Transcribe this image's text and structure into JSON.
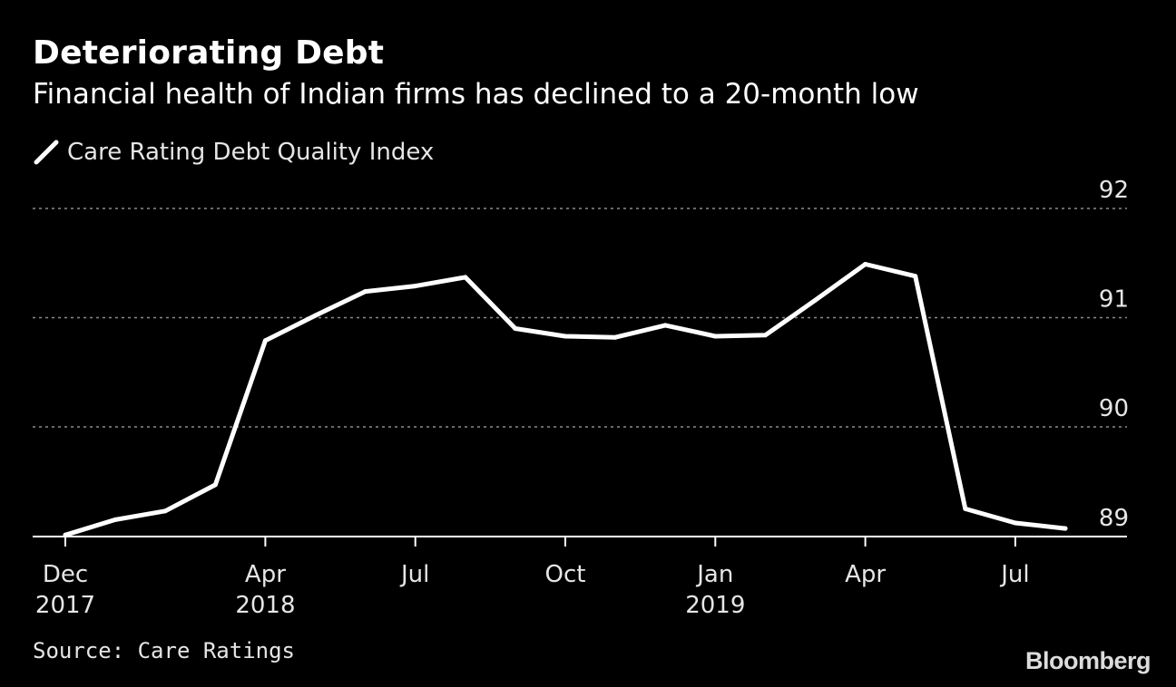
{
  "chart_data": {
    "type": "line",
    "title": "Deteriorating Debt",
    "subtitle": "Financial health of Indian firms has declined to a 20-month low",
    "series": [
      {
        "name": "Care Rating Debt Quality Index",
        "color": "#ffffff",
        "x": [
          "2017-12",
          "2018-01",
          "2018-02",
          "2018-03",
          "2018-04",
          "2018-05",
          "2018-06",
          "2018-07",
          "2018-08",
          "2018-09",
          "2018-10",
          "2018-11",
          "2018-12",
          "2019-01",
          "2019-02",
          "2019-03",
          "2019-04",
          "2019-05",
          "2019-06",
          "2019-07",
          "2019-08"
        ],
        "values": [
          89.01,
          89.15,
          89.23,
          89.47,
          90.79,
          91.02,
          91.24,
          91.29,
          91.37,
          90.9,
          90.83,
          90.82,
          90.93,
          90.83,
          90.84,
          91.16,
          91.49,
          91.38,
          89.25,
          89.12,
          89.07
        ]
      }
    ],
    "ylim": [
      88.7,
      92.0
    ],
    "yticks": [
      "89",
      "90",
      "91",
      "92"
    ],
    "xticks": [
      {
        "month": "2017-12",
        "label": "Dec",
        "year": "2017"
      },
      {
        "month": "2018-04",
        "label": "Apr",
        "year": "2018"
      },
      {
        "month": "2018-07",
        "label": "Jul",
        "year": ""
      },
      {
        "month": "2018-10",
        "label": "Oct",
        "year": ""
      },
      {
        "month": "2019-01",
        "label": "Jan",
        "year": "2019"
      },
      {
        "month": "2019-04",
        "label": "Apr",
        "year": ""
      },
      {
        "month": "2019-07",
        "label": "Jul",
        "year": ""
      }
    ],
    "grid": true,
    "legend": "top-left",
    "source": "Source: Care Ratings"
  },
  "branding": {
    "logo": "Bloomberg"
  }
}
